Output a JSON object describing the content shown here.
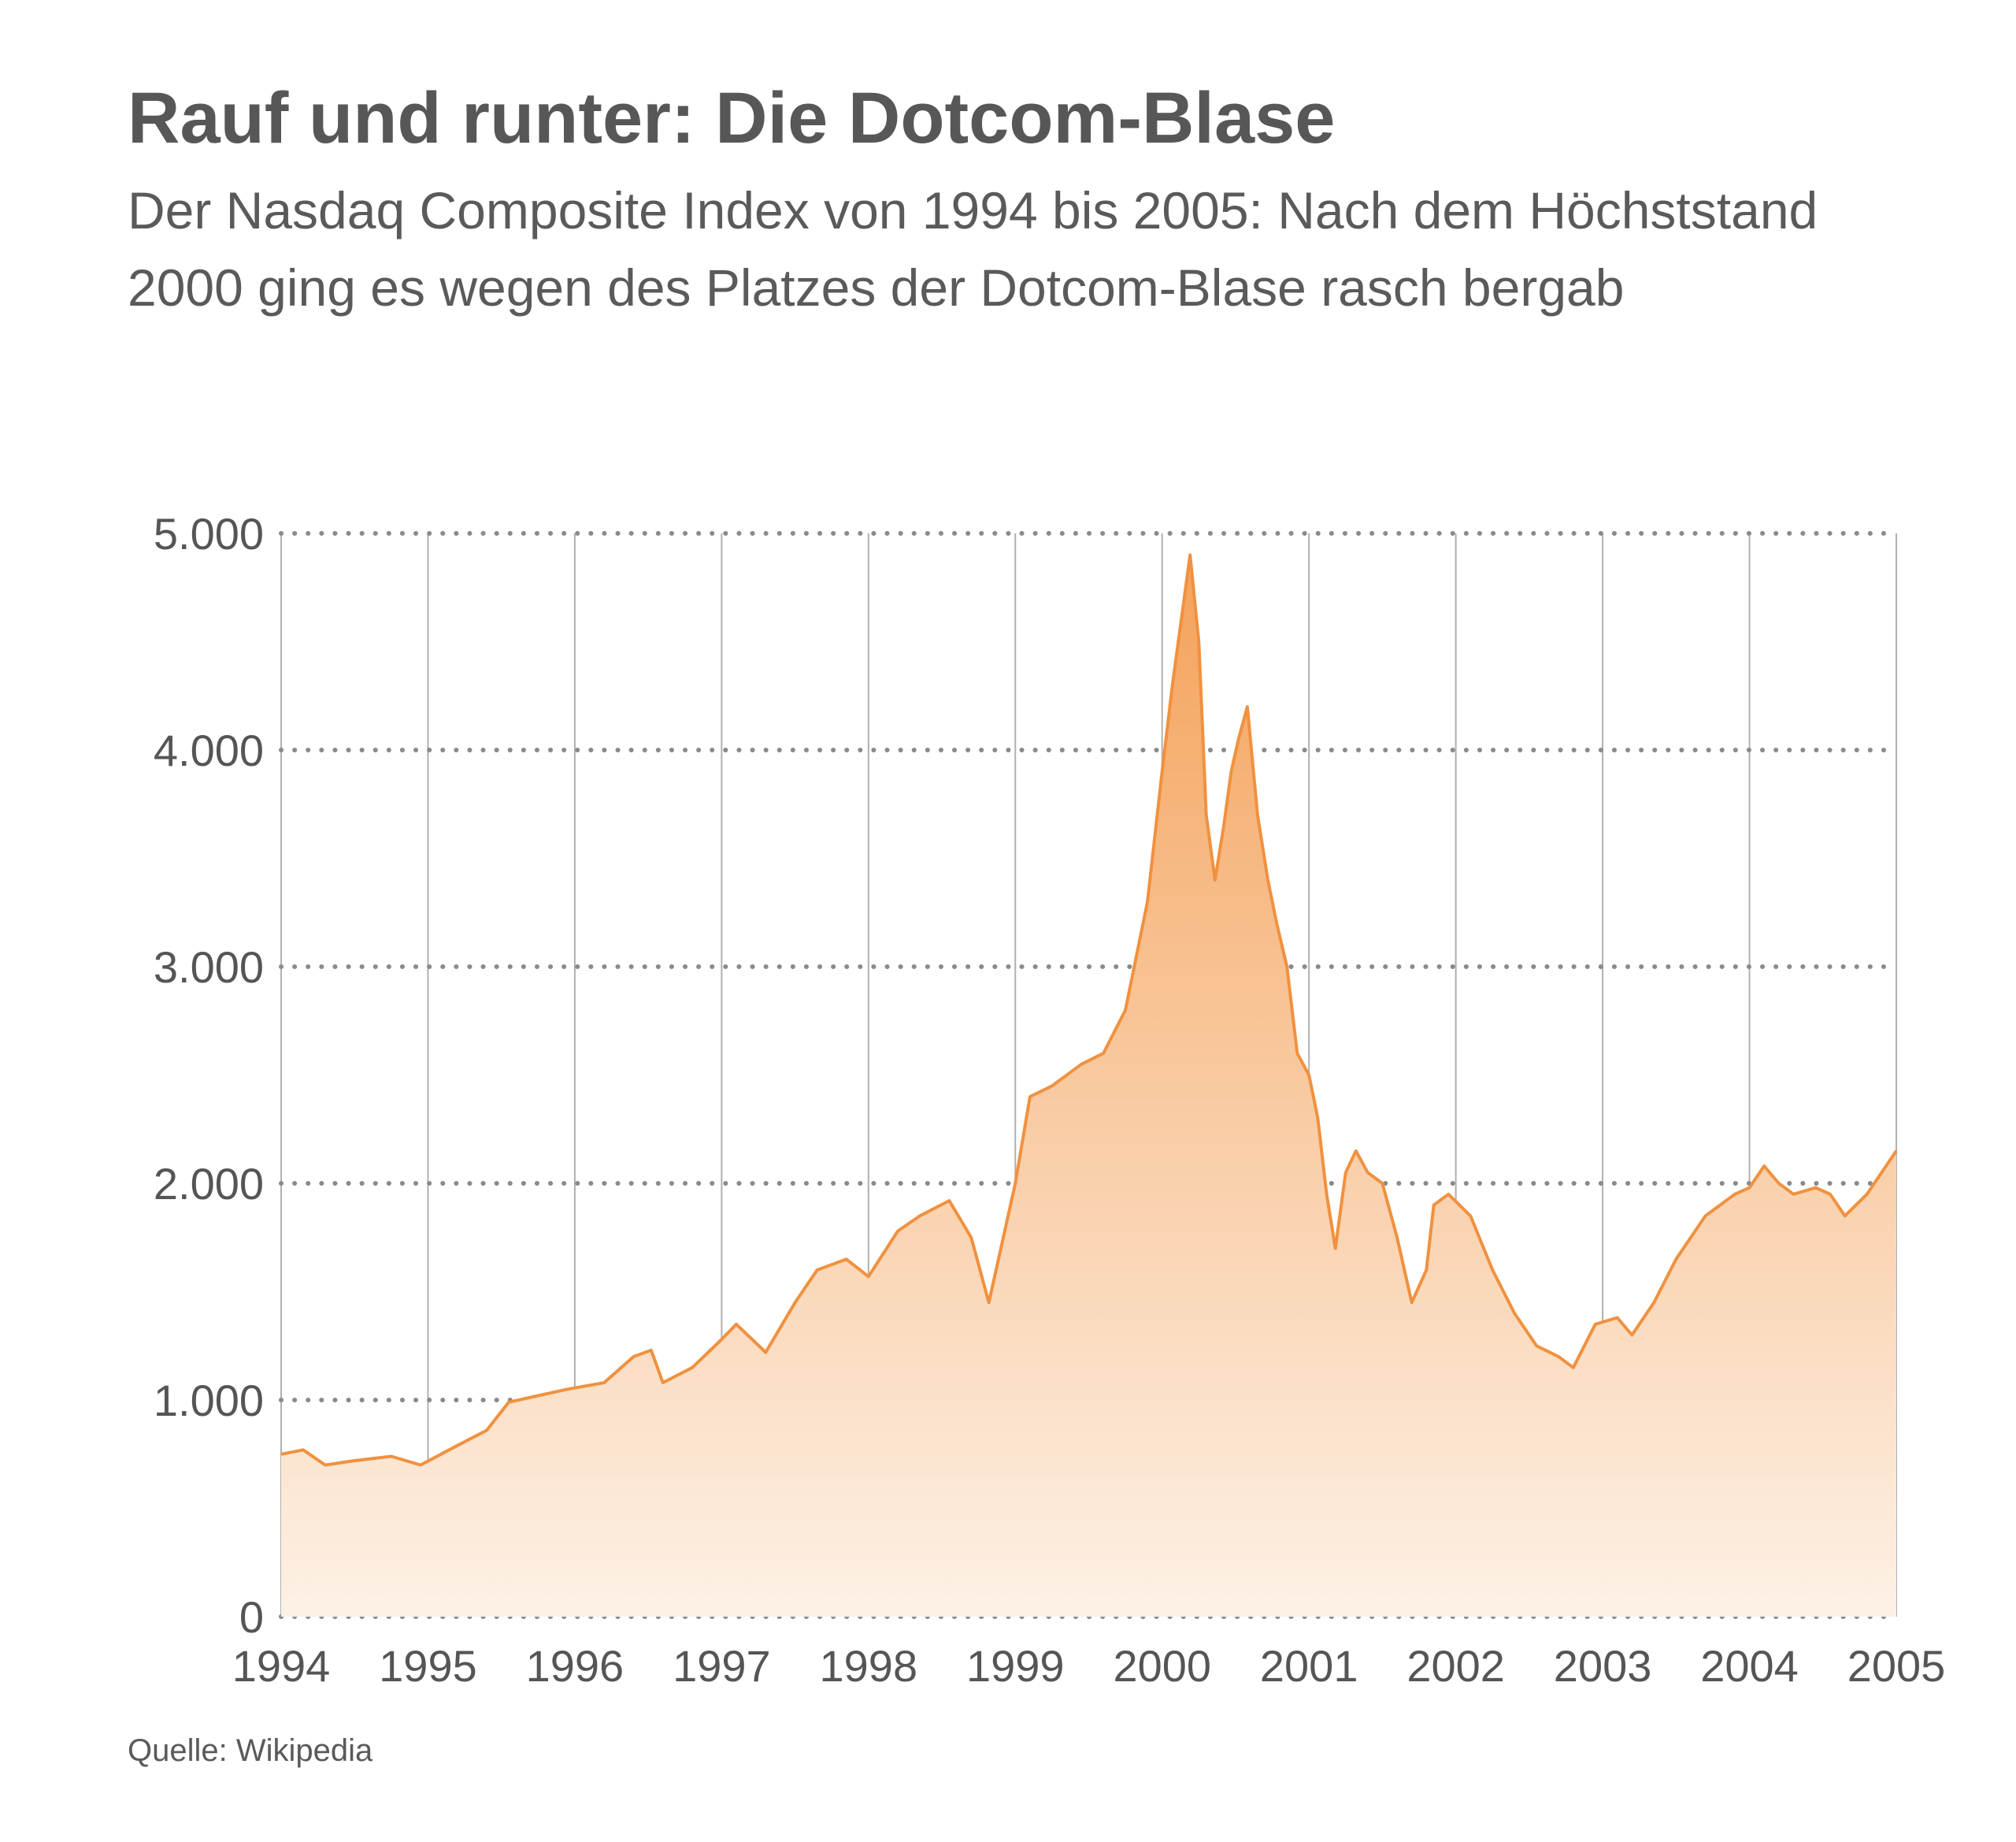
{
  "title": "Rauf und runter: Die Dotcom-Blase",
  "subtitle": "Der Nasdaq Composite Index von 1994 bis 2005: Nach dem Höchststand 2000 ging es wegen des Platzes der Dotcom-Blase rasch bergab",
  "source": "Quelle: Wikipedia",
  "colors": {
    "line": "#f0913f",
    "fill_top": "#f4a25a",
    "fill_bottom": "#fdf1e6",
    "grid": "#8a8a8a",
    "vline": "#b0b0b0"
  },
  "chart_data": {
    "type": "area",
    "title": "Rauf und runter: Die Dotcom-Blase",
    "xlabel": "",
    "ylabel": "",
    "xlim": [
      1994,
      2005
    ],
    "ylim": [
      0,
      5000
    ],
    "grid": "horizontal dotted, vertical solid per year",
    "x_ticks": [
      "1994",
      "1995",
      "1996",
      "1997",
      "1998",
      "1999",
      "2000",
      "2001",
      "2002",
      "2003",
      "2004",
      "2005"
    ],
    "y_ticks": [
      "0",
      "1.000",
      "2.000",
      "3.000",
      "4.000",
      "5.000"
    ],
    "series": [
      {
        "name": "",
        "x": [
          1994.0,
          1994.15,
          1994.3,
          1994.5,
          1994.75,
          1994.95,
          1995.2,
          1995.4,
          1995.55,
          1995.75,
          1995.95,
          1996.2,
          1996.4,
          1996.52,
          1996.6,
          1996.8,
          1997.0,
          1997.1,
          1997.3,
          1997.5,
          1997.65,
          1997.85,
          1998.0,
          1998.2,
          1998.35,
          1998.55,
          1998.7,
          1998.82,
          1999.0,
          1999.1,
          1999.25,
          1999.45,
          1999.6,
          1999.75,
          1999.9,
          2000.0,
          2000.07,
          2000.13,
          2000.19,
          2000.25,
          2000.3,
          2000.36,
          2000.42,
          2000.47,
          2000.52,
          2000.58,
          2000.65,
          2000.72,
          2000.78,
          2000.85,
          2000.92,
          2001.0,
          2001.06,
          2001.12,
          2001.18,
          2001.25,
          2001.32,
          2001.4,
          2001.5,
          2001.6,
          2001.7,
          2001.8,
          2001.85,
          2001.95,
          2002.1,
          2002.25,
          2002.4,
          2002.55,
          2002.7,
          2002.8,
          2002.95,
          2003.1,
          2003.2,
          2003.35,
          2003.5,
          2003.7,
          2003.9,
          2004.0,
          2004.1,
          2004.2,
          2004.3,
          2004.45,
          2004.55,
          2004.65,
          2004.8,
          2004.9,
          2005.0
        ],
        "values": [
          750,
          770,
          700,
          720,
          740,
          700,
          790,
          860,
          990,
          1020,
          1050,
          1080,
          1200,
          1230,
          1080,
          1150,
          1280,
          1350,
          1220,
          1450,
          1600,
          1650,
          1570,
          1780,
          1850,
          1920,
          1750,
          1450,
          2000,
          2400,
          2450,
          2550,
          2600,
          2800,
          3300,
          3900,
          4300,
          4600,
          4900,
          4500,
          3700,
          3400,
          3650,
          3900,
          4050,
          4200,
          3700,
          3400,
          3200,
          3000,
          2600,
          2500,
          2300,
          1950,
          1700,
          2050,
          2150,
          2050,
          2000,
          1750,
          1450,
          1600,
          1900,
          1950,
          1850,
          1600,
          1400,
          1250,
          1200,
          1150,
          1350,
          1380,
          1300,
          1450,
          1650,
          1850,
          1950,
          1980,
          2080,
          2000,
          1950,
          1980,
          1950,
          1850,
          1950,
          2050,
          2150
        ]
      }
    ]
  }
}
